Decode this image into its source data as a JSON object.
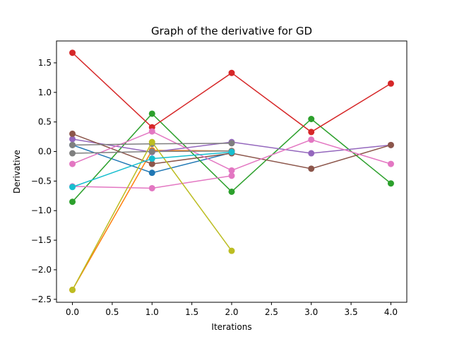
{
  "chart_data": {
    "type": "line",
    "title": "Graph of the derivative for GD",
    "xlabel": "Iterations",
    "ylabel": "Derivative",
    "xlim": [
      -0.2,
      4.2
    ],
    "ylim": [
      -2.55,
      1.87
    ],
    "xticks": [
      0.0,
      0.5,
      1.0,
      1.5,
      2.0,
      2.5,
      3.0,
      3.5,
      4.0
    ],
    "xtick_labels": [
      "0.0",
      "0.5",
      "1.0",
      "1.5",
      "2.0",
      "2.5",
      "3.0",
      "3.5",
      "4.0"
    ],
    "yticks": [
      -2.5,
      -2.0,
      -1.5,
      -1.0,
      -0.5,
      0.0,
      0.5,
      1.0,
      1.5
    ],
    "ytick_labels": [
      "−2.5",
      "−2.0",
      "−1.5",
      "−1.0",
      "−0.5",
      "0.0",
      "0.5",
      "1.0",
      "1.5"
    ],
    "grid": false,
    "series": [
      {
        "color": "#1f77b4",
        "x": [
          0,
          1,
          2
        ],
        "y": [
          0.11,
          -0.36,
          -0.02
        ]
      },
      {
        "color": "#ff7f0e",
        "x": [
          0,
          1,
          2
        ],
        "y": [
          -2.34,
          0.02,
          0.01
        ]
      },
      {
        "color": "#2ca02c",
        "x": [
          0,
          1,
          2,
          3,
          4
        ],
        "y": [
          -0.85,
          0.64,
          -0.68,
          0.55,
          -0.54
        ]
      },
      {
        "color": "#d62728",
        "x": [
          0,
          1,
          2,
          3,
          4
        ],
        "y": [
          1.67,
          0.41,
          1.33,
          0.33,
          1.15
        ]
      },
      {
        "color": "#9467bd",
        "x": [
          0,
          1,
          2,
          3,
          4
        ],
        "y": [
          0.21,
          -0.01,
          0.16,
          -0.03,
          0.11
        ]
      },
      {
        "color": "#8c564b",
        "x": [
          0,
          1,
          2,
          3,
          4
        ],
        "y": [
          0.3,
          -0.21,
          -0.03,
          -0.29,
          0.11
        ]
      },
      {
        "color": "#e377c2",
        "x": [
          0,
          1,
          2,
          3,
          4
        ],
        "y": [
          -0.21,
          0.34,
          -0.32,
          0.2,
          -0.21
        ]
      },
      {
        "color": "#e377c2",
        "x": [
          0,
          1,
          2
        ],
        "y": [
          -0.59,
          -0.62,
          -0.41
        ]
      },
      {
        "color": "#7f7f7f",
        "x": [
          0,
          1,
          2
        ],
        "y": [
          -0.03,
          0.0,
          0.01
        ]
      },
      {
        "color": "#7f7f7f",
        "x": [
          0,
          1,
          2
        ],
        "y": [
          0.11,
          0.13,
          0.14
        ]
      },
      {
        "color": "#bcbd22",
        "x": [
          0,
          1,
          2
        ],
        "y": [
          -2.34,
          0.16,
          -1.68
        ]
      },
      {
        "color": "#17becf",
        "x": [
          0,
          1,
          2
        ],
        "y": [
          -0.6,
          -0.12,
          -0.01
        ]
      }
    ]
  }
}
